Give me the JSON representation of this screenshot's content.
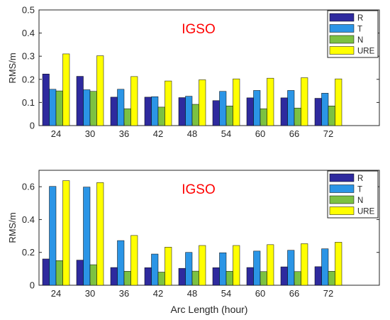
{
  "colors": {
    "R": "#2e2a9e",
    "T": "#2b95e6",
    "N": "#7cc142",
    "URE": "#ffff00",
    "annotation": "#ff0000",
    "axis": "#262626"
  },
  "chart_data": [
    {
      "type": "bar",
      "annotation": "IGSO",
      "ylabel": "RMS/m",
      "xlabel": "",
      "categories": [
        "24",
        "30",
        "36",
        "42",
        "48",
        "54",
        "60",
        "66",
        "72"
      ],
      "ylim": [
        0,
        0.5
      ],
      "yticks": [
        "0",
        "0.1",
        "0.2",
        "0.3",
        "0.4",
        "0.5"
      ],
      "ytick_values": [
        0,
        0.1,
        0.2,
        0.3,
        0.4,
        0.5
      ],
      "x_extra_slots": 1,
      "grid": false,
      "legend_position": "top-right",
      "series": [
        {
          "name": "R",
          "values": [
            0.223,
            0.213,
            0.123,
            0.123,
            0.121,
            0.108,
            0.12,
            0.12,
            0.118
          ]
        },
        {
          "name": "T",
          "values": [
            0.157,
            0.155,
            0.157,
            0.125,
            0.127,
            0.148,
            0.152,
            0.152,
            0.14
          ]
        },
        {
          "name": "N",
          "values": [
            0.15,
            0.148,
            0.073,
            0.08,
            0.092,
            0.085,
            0.073,
            0.076,
            0.085
          ]
        },
        {
          "name": "URE",
          "values": [
            0.31,
            0.302,
            0.212,
            0.193,
            0.198,
            0.202,
            0.205,
            0.207,
            0.202
          ]
        }
      ]
    },
    {
      "type": "bar",
      "annotation": "IGSO",
      "ylabel": "RMS/m",
      "xlabel": "Arc Length (hour)",
      "categories": [
        "24",
        "30",
        "36",
        "42",
        "48",
        "54",
        "60",
        "66",
        "72"
      ],
      "ylim": [
        0,
        0.7
      ],
      "yticks": [
        "0",
        "0.2",
        "0.4",
        "0.6"
      ],
      "ytick_values": [
        0,
        0.2,
        0.4,
        0.6
      ],
      "x_extra_slots": 1,
      "grid": false,
      "legend_position": "top-right",
      "series": [
        {
          "name": "R",
          "values": [
            0.16,
            0.153,
            0.108,
            0.107,
            0.103,
            0.107,
            0.108,
            0.112,
            0.113
          ]
        },
        {
          "name": "T",
          "values": [
            0.602,
            0.598,
            0.272,
            0.19,
            0.2,
            0.198,
            0.208,
            0.213,
            0.222
          ]
        },
        {
          "name": "N",
          "values": [
            0.15,
            0.125,
            0.085,
            0.08,
            0.086,
            0.085,
            0.083,
            0.083,
            0.085
          ]
        },
        {
          "name": "URE",
          "values": [
            0.637,
            0.625,
            0.303,
            0.232,
            0.242,
            0.242,
            0.247,
            0.253,
            0.262
          ]
        }
      ]
    }
  ]
}
